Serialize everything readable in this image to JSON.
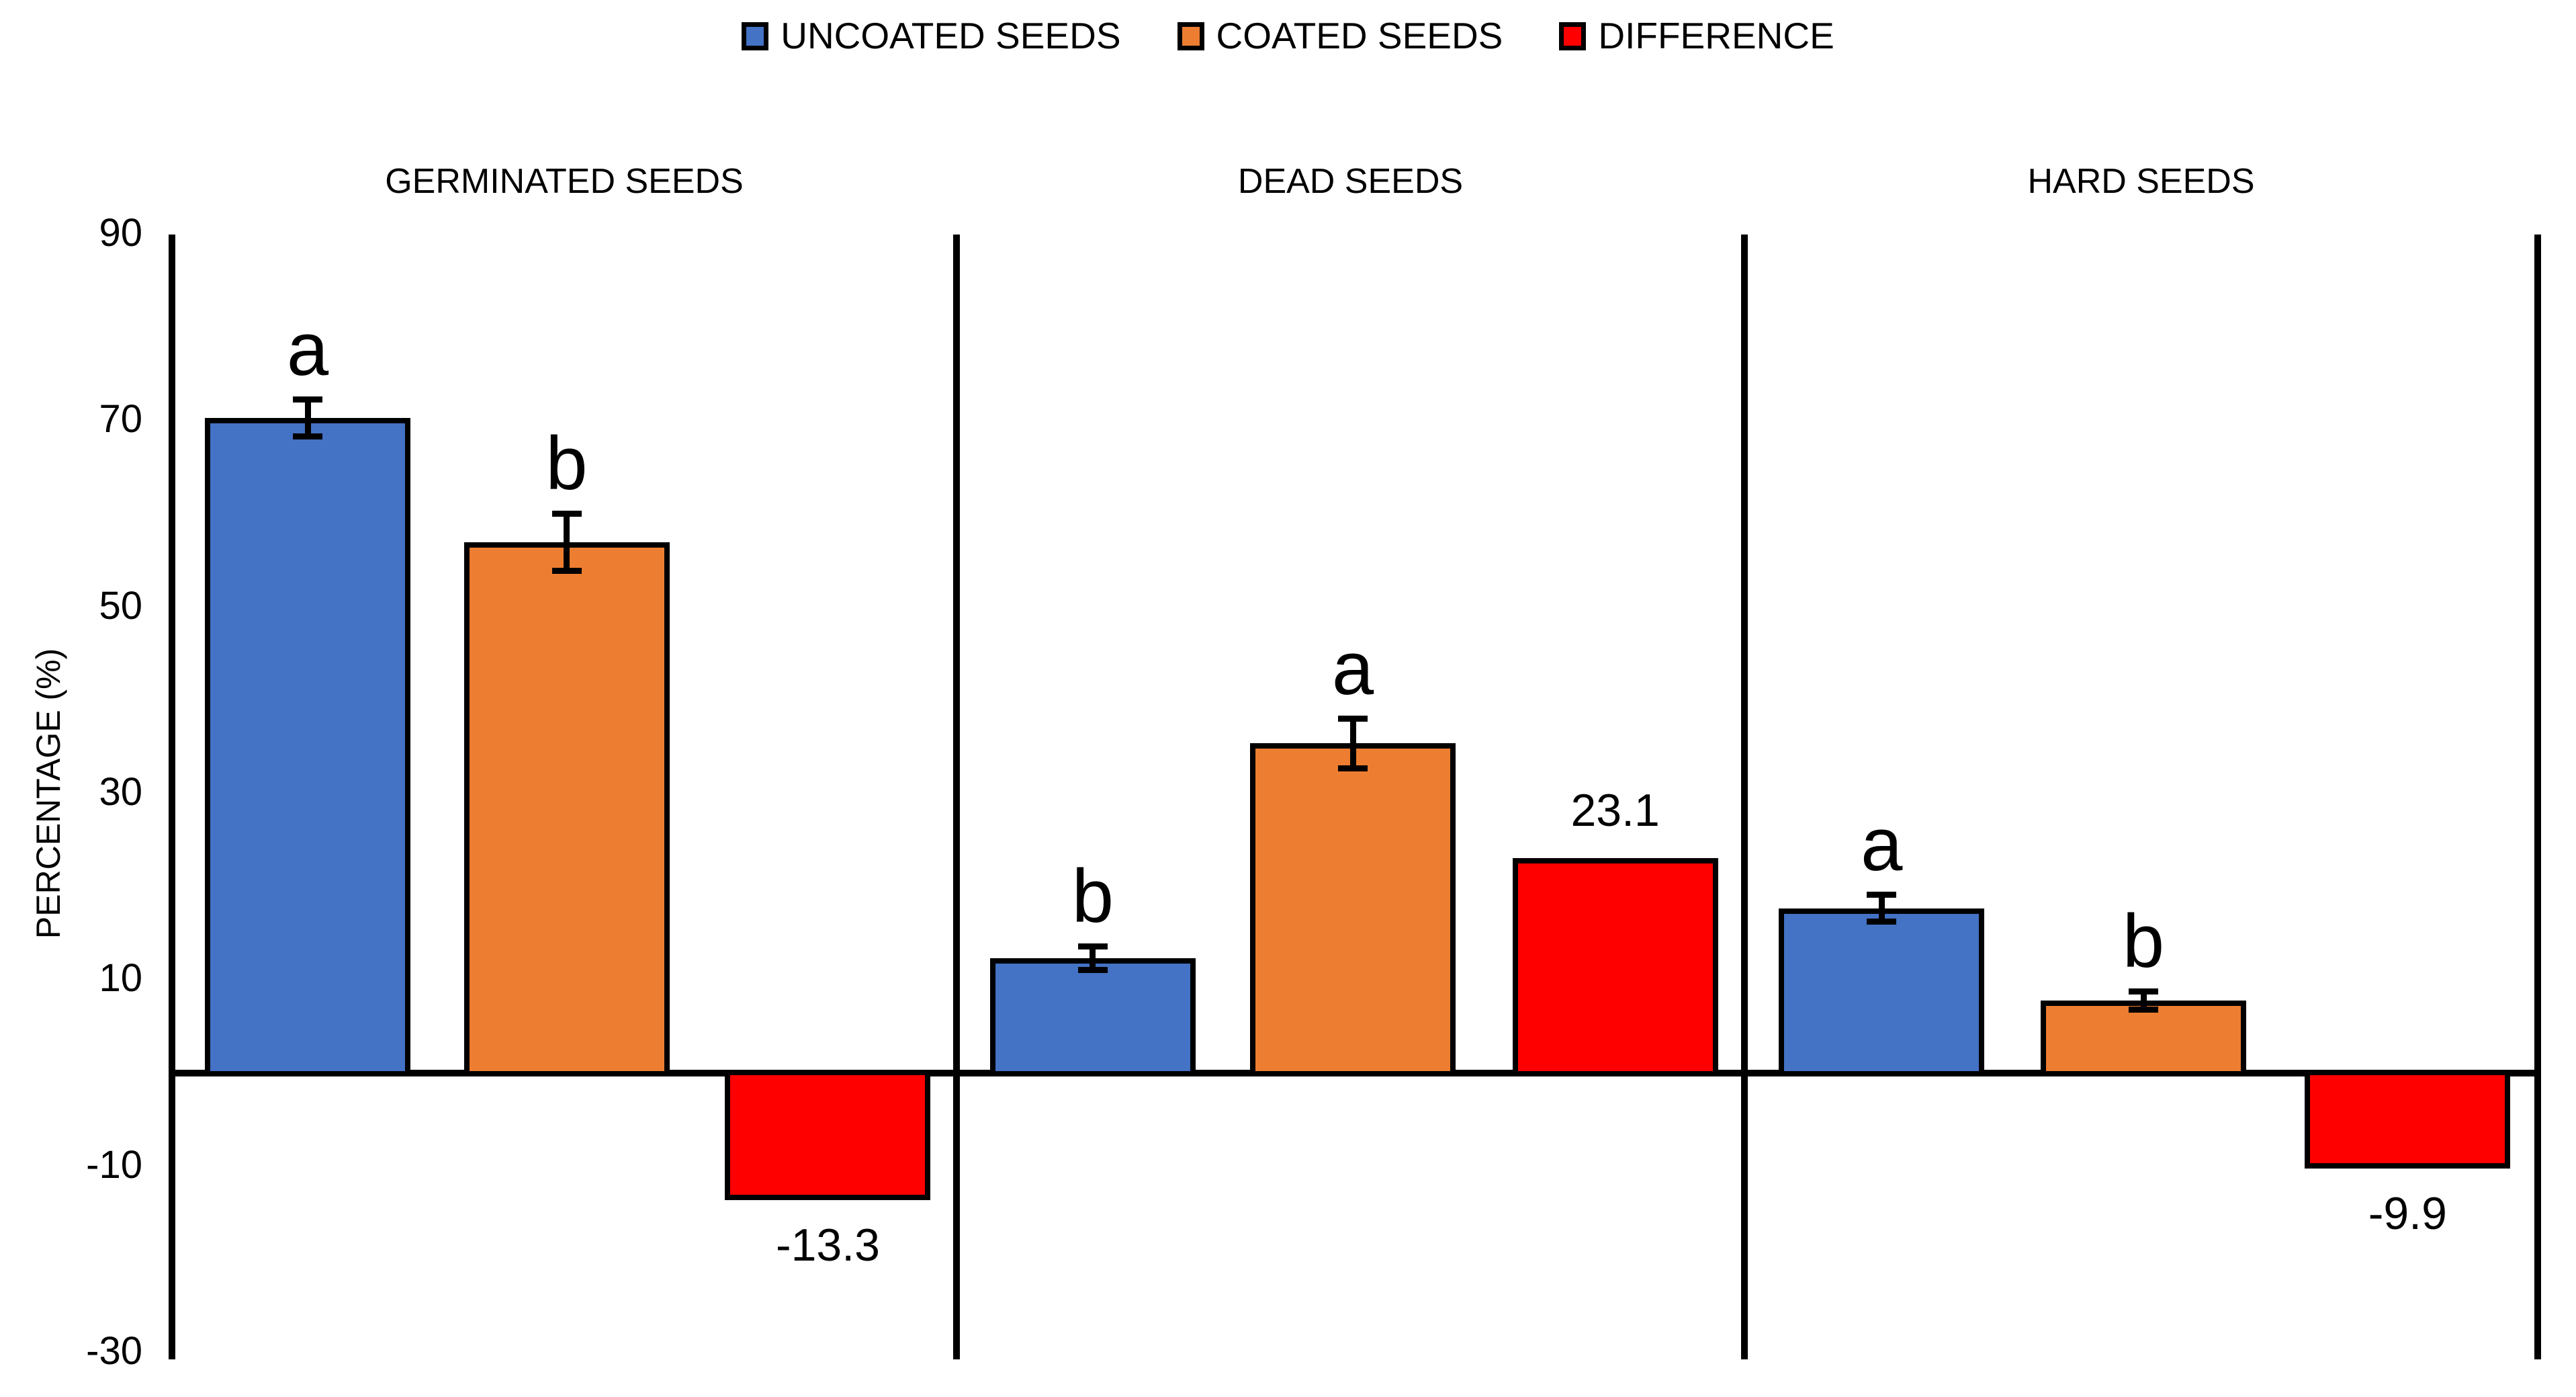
{
  "legend": {
    "items": [
      {
        "label": "UNCOATED SEEDS",
        "key": "uncoated",
        "color": "#4472C4"
      },
      {
        "label": "COATED SEEDS",
        "key": "coated",
        "color": "#ED7D31"
      },
      {
        "label": "DIFFERENCE",
        "key": "difference",
        "color": "#FF0000"
      }
    ]
  },
  "chart_data": {
    "type": "bar",
    "title": "",
    "ylabel": "PERCENTAGE (%)",
    "ylim": [
      -30,
      90
    ],
    "ytick_step": 20,
    "grid": false,
    "legend_position": "top-center",
    "yticks": [
      {
        "value": 90,
        "label": "90"
      },
      {
        "value": 70,
        "label": "70"
      },
      {
        "value": 50,
        "label": "50"
      },
      {
        "value": 30,
        "label": "30"
      },
      {
        "value": 10,
        "label": "10"
      },
      {
        "value": -10,
        "label": "-10"
      },
      {
        "value": -30,
        "label": "-30"
      }
    ],
    "series_names": [
      "UNCOATED SEEDS",
      "COATED SEEDS",
      "DIFFERENCE"
    ],
    "colors": {
      "uncoated": "#4472C4",
      "coated": "#ED7D31",
      "difference": "#FF0000",
      "axis": "#000000"
    },
    "panels": [
      {
        "title": "GERMINATED SEEDS",
        "slug": "germinated-seeds",
        "bars": [
          {
            "series": "UNCOATED SEEDS",
            "key": "uncoated",
            "value": 70.3,
            "error": 2.0,
            "letter": "a"
          },
          {
            "series": "COATED SEEDS",
            "key": "coated",
            "value": 57.0,
            "error": 3.1,
            "letter": "b"
          },
          {
            "series": "DIFFERENCE",
            "key": "difference",
            "value": -13.3,
            "label": "-13.3"
          }
        ]
      },
      {
        "title": "DEAD SEEDS",
        "slug": "dead-seeds",
        "bars": [
          {
            "series": "UNCOATED SEEDS",
            "key": "uncoated",
            "value": 12.3,
            "error": 1.3,
            "letter": "b"
          },
          {
            "series": "COATED SEEDS",
            "key": "coated",
            "value": 35.4,
            "error": 2.7,
            "letter": "a"
          },
          {
            "series": "DIFFERENCE",
            "key": "difference",
            "value": 23.1,
            "label": "23.1"
          }
        ]
      },
      {
        "title": "HARD SEEDS",
        "slug": "hard-seeds",
        "bars": [
          {
            "series": "UNCOATED SEEDS",
            "key": "uncoated",
            "value": 17.7,
            "error": 1.5,
            "letter": "a"
          },
          {
            "series": "COATED SEEDS",
            "key": "coated",
            "value": 7.8,
            "error": 1.0,
            "letter": "b"
          },
          {
            "series": "DIFFERENCE",
            "key": "difference",
            "value": -9.9,
            "label": "-9.9"
          }
        ]
      }
    ]
  }
}
